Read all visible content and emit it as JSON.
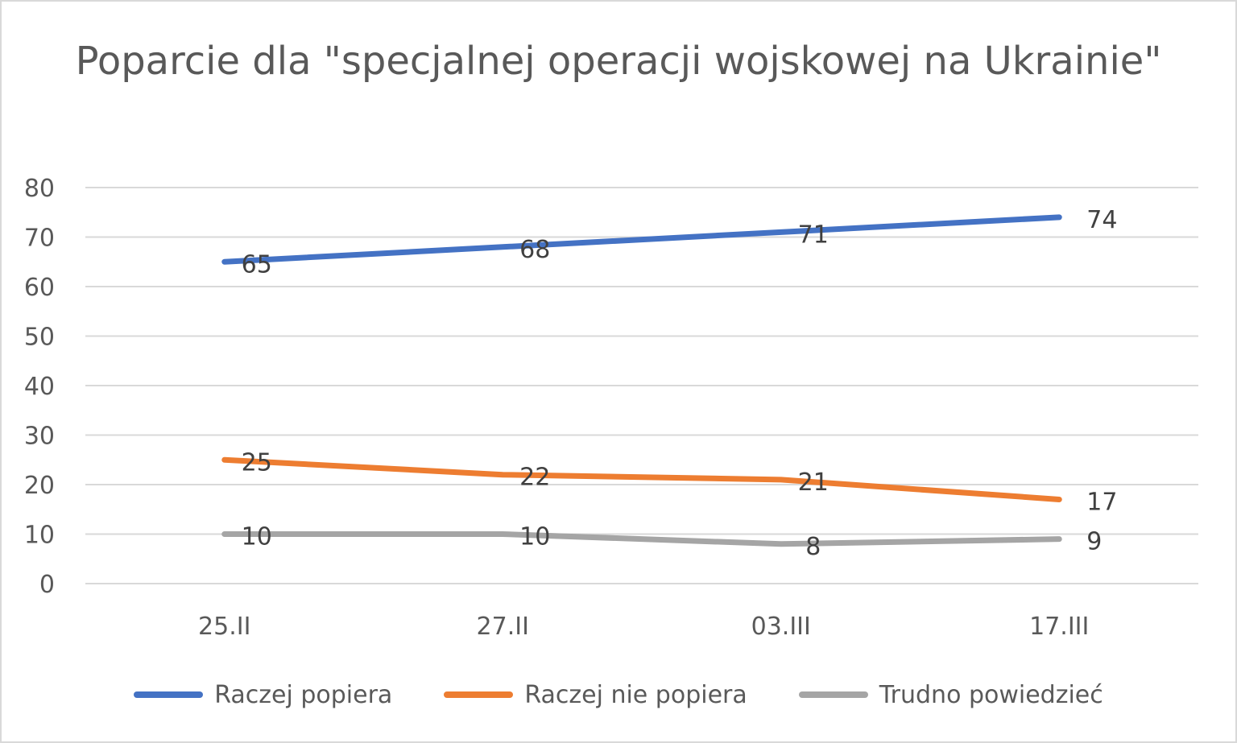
{
  "chart_data": {
    "type": "line",
    "title": "Poparcie dla \"specjalnej operacji wojskowej na Ukrainie\"",
    "categories": [
      "25.II",
      "27.II",
      "03.III",
      "17.III"
    ],
    "ylim": [
      0,
      80
    ],
    "yticks": [
      0,
      10,
      20,
      30,
      40,
      50,
      60,
      70,
      80
    ],
    "grid": true,
    "legend_position": "bottom",
    "series": [
      {
        "name": "Raczej popiera",
        "color": "#4472c4",
        "values": [
          65,
          68,
          71,
          74
        ]
      },
      {
        "name": "Raczej nie popiera",
        "color": "#ed7d31",
        "values": [
          25,
          22,
          21,
          17
        ]
      },
      {
        "name": "Trudno powiedzieć",
        "color": "#a5a5a5",
        "values": [
          10,
          10,
          8,
          9
        ]
      }
    ]
  }
}
